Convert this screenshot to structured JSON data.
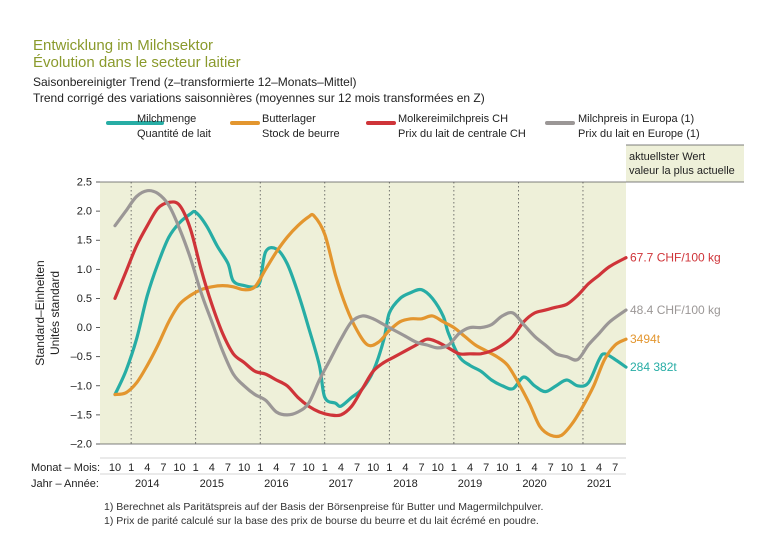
{
  "header": {
    "title_de": "Entwicklung im Milchsektor",
    "title_fr": "Évolution dans le secteur laitier",
    "subtitle_de": "Saisonbereinigter Trend (z–transformierte 12–Monats–Mittel)",
    "subtitle_fr": "Trend corrigé des variations saisonnières (moyennes sur 12 mois transformées en Z)"
  },
  "legend": [
    {
      "de": "Milchmenge",
      "fr": "Quantité de lait",
      "color": "#27ada5"
    },
    {
      "de": "Butterlager",
      "fr": "Stock de beurre",
      "color": "#e3962f"
    },
    {
      "de": "Molkereimilchpreis CH",
      "fr": "Prix du lait de centrale CH",
      "color": "#cf3439"
    },
    {
      "de": "Milchpreis in Europa (1)",
      "fr": "Prix du lait en Europe (1)",
      "color": "#9b9796"
    }
  ],
  "current_box": {
    "de": "aktuellster Wert",
    "fr": "valeur la plus actuelle"
  },
  "colors": {
    "panel": "#eef0d9",
    "accent_title": "#8a9a2c"
  },
  "axes": {
    "ylabel_de": "Standard–Einheiten",
    "ylabel_fr": "Unités standard",
    "month_label": "Monat – Mois:",
    "year_label": "Jahr – Année:"
  },
  "footnotes": [
    "1)  Berechnet als Paritätspreis auf der Basis der Börsenpreise für Butter und Magermilchpulver.",
    "1)  Prix de parité calculé sur la base des prix de bourse du beurre et du lait écrémé en poudre."
  ],
  "chart_data": {
    "type": "line",
    "title": "Entwicklung im Milchsektor",
    "ylabel": "Standard–Einheiten / Unités standard",
    "ylim": [
      -2.0,
      2.5
    ],
    "yticks": [
      -2.0,
      -1.5,
      -1.0,
      -0.5,
      0.0,
      0.5,
      1.0,
      1.5,
      2.0,
      2.5
    ],
    "ytick_labels": [
      "–2.0",
      "–1.5",
      "–1.0",
      "–0.5",
      "0.0",
      "0.5",
      "1.0",
      "1.5",
      "2.0",
      "2.5"
    ],
    "x_start": "2013-10",
    "x_end": "2021-09",
    "month_ticks": [
      "10",
      "1",
      "4",
      "7",
      "10",
      "1",
      "4",
      "7",
      "10",
      "1",
      "4",
      "7",
      "10",
      "1",
      "4",
      "7",
      "10",
      "1",
      "4",
      "7",
      "10",
      "1",
      "4",
      "7",
      "10",
      "1",
      "4",
      "7",
      "10",
      "1",
      "4",
      "7"
    ],
    "year_labels": [
      "2014",
      "2015",
      "2016",
      "2017",
      "2018",
      "2019",
      "2020",
      "2021"
    ],
    "grid": "dotted vertical at each January",
    "legend_position": "top",
    "series": [
      {
        "name": "Milchmenge / Quantité de lait",
        "color": "#27ada5",
        "end_label": "284 382t",
        "points": [
          [
            "2013-10",
            -1.15
          ],
          [
            "2013-12",
            -0.75
          ],
          [
            "2014-02",
            -0.2
          ],
          [
            "2014-04",
            0.55
          ],
          [
            "2014-06",
            1.1
          ],
          [
            "2014-08",
            1.55
          ],
          [
            "2014-10",
            1.8
          ],
          [
            "2014-12",
            1.95
          ],
          [
            "2015-01",
            1.98
          ],
          [
            "2015-03",
            1.75
          ],
          [
            "2015-05",
            1.4
          ],
          [
            "2015-07",
            1.1
          ],
          [
            "2015-08",
            0.8
          ],
          [
            "2015-10",
            0.72
          ],
          [
            "2015-12",
            0.7
          ],
          [
            "2016-01",
            0.8
          ],
          [
            "2016-02",
            1.3
          ],
          [
            "2016-04",
            1.35
          ],
          [
            "2016-06",
            1.1
          ],
          [
            "2016-08",
            0.6
          ],
          [
            "2016-10",
            0.0
          ],
          [
            "2016-12",
            -0.65
          ],
          [
            "2017-01",
            -1.2
          ],
          [
            "2017-03",
            -1.3
          ],
          [
            "2017-04",
            -1.35
          ],
          [
            "2017-06",
            -1.2
          ],
          [
            "2017-08",
            -1.05
          ],
          [
            "2017-10",
            -0.75
          ],
          [
            "2017-12",
            -0.2
          ],
          [
            "2018-01",
            0.25
          ],
          [
            "2018-03",
            0.5
          ],
          [
            "2018-05",
            0.6
          ],
          [
            "2018-07",
            0.65
          ],
          [
            "2018-09",
            0.5
          ],
          [
            "2018-11",
            0.2
          ],
          [
            "2018-12",
            -0.1
          ],
          [
            "2019-02",
            -0.5
          ],
          [
            "2019-04",
            -0.65
          ],
          [
            "2019-06",
            -0.75
          ],
          [
            "2019-08",
            -0.9
          ],
          [
            "2019-10",
            -1.0
          ],
          [
            "2019-12",
            -1.05
          ],
          [
            "2020-02",
            -0.85
          ],
          [
            "2020-04",
            -1.0
          ],
          [
            "2020-06",
            -1.1
          ],
          [
            "2020-08",
            -1.0
          ],
          [
            "2020-10",
            -0.9
          ],
          [
            "2020-12",
            -1.0
          ],
          [
            "2021-02",
            -0.95
          ],
          [
            "2021-04",
            -0.55
          ],
          [
            "2021-05",
            -0.45
          ],
          [
            "2021-07",
            -0.55
          ],
          [
            "2021-09",
            -0.68
          ]
        ]
      },
      {
        "name": "Butterlager / Stock de beurre",
        "color": "#e3962f",
        "end_label": "3494t",
        "points": [
          [
            "2013-10",
            -1.15
          ],
          [
            "2013-12",
            -1.12
          ],
          [
            "2014-02",
            -0.95
          ],
          [
            "2014-04",
            -0.65
          ],
          [
            "2014-06",
            -0.3
          ],
          [
            "2014-08",
            0.1
          ],
          [
            "2014-10",
            0.4
          ],
          [
            "2014-12",
            0.55
          ],
          [
            "2015-02",
            0.65
          ],
          [
            "2015-04",
            0.7
          ],
          [
            "2015-06",
            0.72
          ],
          [
            "2015-08",
            0.7
          ],
          [
            "2015-10",
            0.65
          ],
          [
            "2015-12",
            0.7
          ],
          [
            "2016-02",
            1.0
          ],
          [
            "2016-04",
            1.3
          ],
          [
            "2016-06",
            1.55
          ],
          [
            "2016-08",
            1.75
          ],
          [
            "2016-10",
            1.9
          ],
          [
            "2016-11",
            1.92
          ],
          [
            "2017-01",
            1.6
          ],
          [
            "2017-03",
            0.9
          ],
          [
            "2017-05",
            0.35
          ],
          [
            "2017-07",
            -0.05
          ],
          [
            "2017-09",
            -0.3
          ],
          [
            "2017-11",
            -0.25
          ],
          [
            "2018-01",
            -0.05
          ],
          [
            "2018-03",
            0.1
          ],
          [
            "2018-05",
            0.15
          ],
          [
            "2018-07",
            0.15
          ],
          [
            "2018-09",
            0.2
          ],
          [
            "2018-11",
            0.1
          ],
          [
            "2019-01",
            0.0
          ],
          [
            "2019-03",
            -0.15
          ],
          [
            "2019-05",
            -0.3
          ],
          [
            "2019-07",
            -0.4
          ],
          [
            "2019-09",
            -0.5
          ],
          [
            "2019-11",
            -0.65
          ],
          [
            "2020-01",
            -0.95
          ],
          [
            "2020-03",
            -1.3
          ],
          [
            "2020-05",
            -1.7
          ],
          [
            "2020-07",
            -1.85
          ],
          [
            "2020-09",
            -1.85
          ],
          [
            "2020-11",
            -1.65
          ],
          [
            "2021-01",
            -1.35
          ],
          [
            "2021-03",
            -1.0
          ],
          [
            "2021-05",
            -0.55
          ],
          [
            "2021-07",
            -0.3
          ],
          [
            "2021-09",
            -0.2
          ]
        ]
      },
      {
        "name": "Molkereimilchpreis CH / Prix du lait de centrale CH",
        "color": "#cf3439",
        "end_label": "67.7 CHF/100 kg",
        "points": [
          [
            "2013-10",
            0.5
          ],
          [
            "2013-12",
            0.95
          ],
          [
            "2014-02",
            1.4
          ],
          [
            "2014-04",
            1.75
          ],
          [
            "2014-06",
            2.05
          ],
          [
            "2014-08",
            2.15
          ],
          [
            "2014-10",
            2.1
          ],
          [
            "2014-12",
            1.7
          ],
          [
            "2015-02",
            1.0
          ],
          [
            "2015-04",
            0.4
          ],
          [
            "2015-06",
            -0.1
          ],
          [
            "2015-08",
            -0.45
          ],
          [
            "2015-10",
            -0.6
          ],
          [
            "2015-12",
            -0.75
          ],
          [
            "2016-02",
            -0.8
          ],
          [
            "2016-04",
            -0.9
          ],
          [
            "2016-06",
            -1.0
          ],
          [
            "2016-08",
            -1.2
          ],
          [
            "2016-10",
            -1.35
          ],
          [
            "2016-12",
            -1.45
          ],
          [
            "2017-02",
            -1.5
          ],
          [
            "2017-04",
            -1.5
          ],
          [
            "2017-06",
            -1.35
          ],
          [
            "2017-08",
            -1.05
          ],
          [
            "2017-10",
            -0.75
          ],
          [
            "2017-12",
            -0.6
          ],
          [
            "2018-02",
            -0.5
          ],
          [
            "2018-04",
            -0.4
          ],
          [
            "2018-06",
            -0.3
          ],
          [
            "2018-08",
            -0.2
          ],
          [
            "2018-10",
            -0.25
          ],
          [
            "2018-12",
            -0.35
          ],
          [
            "2019-02",
            -0.45
          ],
          [
            "2019-04",
            -0.45
          ],
          [
            "2019-06",
            -0.45
          ],
          [
            "2019-08",
            -0.4
          ],
          [
            "2019-10",
            -0.3
          ],
          [
            "2019-12",
            -0.15
          ],
          [
            "2020-02",
            0.1
          ],
          [
            "2020-04",
            0.25
          ],
          [
            "2020-06",
            0.3
          ],
          [
            "2020-08",
            0.35
          ],
          [
            "2020-10",
            0.4
          ],
          [
            "2020-12",
            0.55
          ],
          [
            "2021-02",
            0.75
          ],
          [
            "2021-04",
            0.9
          ],
          [
            "2021-06",
            1.05
          ],
          [
            "2021-09",
            1.2
          ]
        ]
      },
      {
        "name": "Milchpreis in Europa (1) / Prix du lait en Europe (1)",
        "color": "#9b9796",
        "end_label": "48.4 CHF/100 kg",
        "points": [
          [
            "2013-10",
            1.75
          ],
          [
            "2013-12",
            2.0
          ],
          [
            "2014-02",
            2.25
          ],
          [
            "2014-04",
            2.35
          ],
          [
            "2014-06",
            2.3
          ],
          [
            "2014-08",
            2.1
          ],
          [
            "2014-10",
            1.7
          ],
          [
            "2014-12",
            1.2
          ],
          [
            "2015-02",
            0.6
          ],
          [
            "2015-04",
            0.1
          ],
          [
            "2015-06",
            -0.4
          ],
          [
            "2015-08",
            -0.8
          ],
          [
            "2015-10",
            -1.0
          ],
          [
            "2015-12",
            -1.15
          ],
          [
            "2016-02",
            -1.25
          ],
          [
            "2016-04",
            -1.45
          ],
          [
            "2016-06",
            -1.5
          ],
          [
            "2016-08",
            -1.45
          ],
          [
            "2016-10",
            -1.3
          ],
          [
            "2016-12",
            -0.9
          ],
          [
            "2017-02",
            -0.55
          ],
          [
            "2017-04",
            -0.2
          ],
          [
            "2017-06",
            0.1
          ],
          [
            "2017-08",
            0.2
          ],
          [
            "2017-10",
            0.15
          ],
          [
            "2017-12",
            0.05
          ],
          [
            "2018-02",
            -0.05
          ],
          [
            "2018-04",
            -0.15
          ],
          [
            "2018-06",
            -0.25
          ],
          [
            "2018-08",
            -0.3
          ],
          [
            "2018-10",
            -0.35
          ],
          [
            "2018-12",
            -0.3
          ],
          [
            "2019-02",
            -0.1
          ],
          [
            "2019-04",
            0.0
          ],
          [
            "2019-06",
            0.0
          ],
          [
            "2019-08",
            0.05
          ],
          [
            "2019-10",
            0.2
          ],
          [
            "2019-12",
            0.25
          ],
          [
            "2020-02",
            0.05
          ],
          [
            "2020-04",
            -0.15
          ],
          [
            "2020-06",
            -0.3
          ],
          [
            "2020-08",
            -0.45
          ],
          [
            "2020-10",
            -0.5
          ],
          [
            "2020-12",
            -0.55
          ],
          [
            "2021-02",
            -0.3
          ],
          [
            "2021-04",
            -0.1
          ],
          [
            "2021-06",
            0.1
          ],
          [
            "2021-09",
            0.3
          ]
        ]
      }
    ]
  }
}
